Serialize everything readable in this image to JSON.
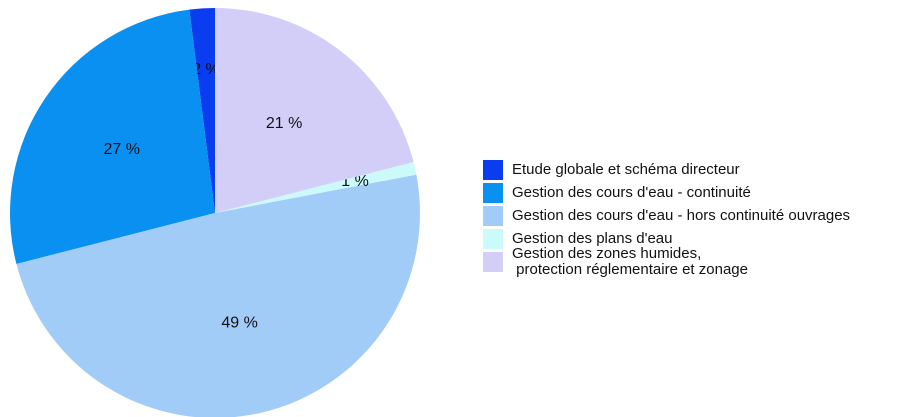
{
  "chart_data": {
    "type": "pie",
    "categories": [
      "Etude globale et schéma directeur",
      "Gestion des cours d'eau - continuité",
      "Gestion des cours d'eau - hors continuité ouvrages",
      "Gestion des plans d'eau",
      "Gestion des zones humides,\n protection réglementaire et zonage"
    ],
    "values": [
      2,
      27,
      49,
      1,
      21
    ],
    "value_labels": [
      "2 %",
      "27 %",
      "49 %",
      "1 %",
      "21 %"
    ],
    "colors": [
      "#0a3cf0",
      "#0a90f0",
      "#a2ccf8",
      "#ccfafa",
      "#d2cef8"
    ],
    "direction": "counterclockwise",
    "start_angle": 90
  }
}
